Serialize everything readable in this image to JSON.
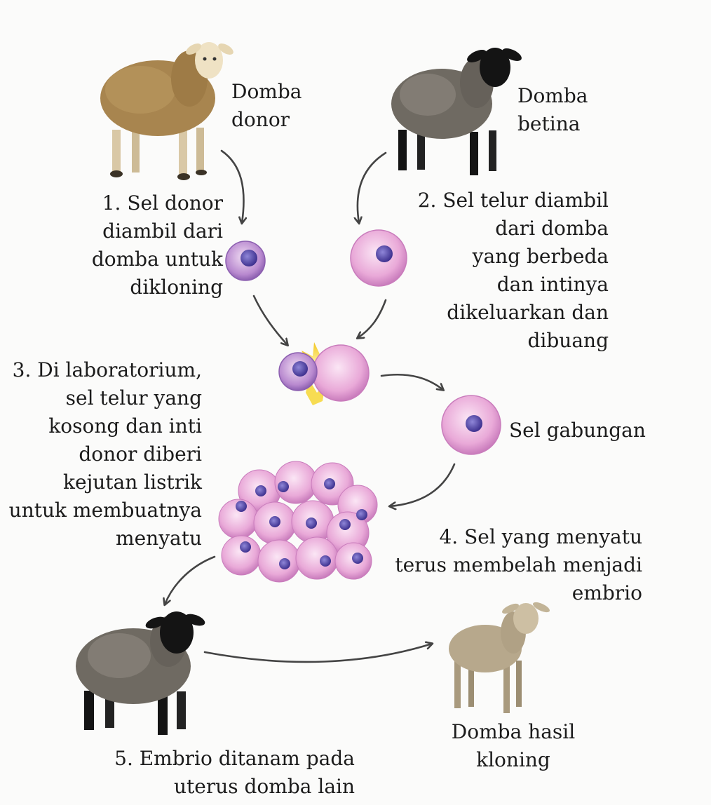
{
  "labels": {
    "donor_sheep": "Domba\ndonor",
    "female_sheep": "Domba\nbetina",
    "step1": "1. Sel donor\ndiambil dari\ndomba untuk\ndikloning",
    "step2": "2. Sel telur diambil\ndari domba\nyang berbeda\ndan intinya\ndikeluarkan dan\ndibuang",
    "step3": "3. Di laboratorium,\nsel telur yang\nkosong dan inti\ndonor diberi\nkejutan listrik\nuntuk membuatnya\nmenyatu",
    "combined_cell": "Sel gabungan",
    "step4": "4. Sel yang menyatu\nterus membelah menjadi\nembrio",
    "cloned_sheep": "Domba hasil\nkloning",
    "step5": "5. Embrio ditanam pada\nuterus domba lain"
  },
  "colors": {
    "donor_wool": "#a8854f",
    "donor_face": "#efe2c4",
    "female_wool": "#6f6a62",
    "female_face": "#141414",
    "clone_wool": "#b7a88c",
    "cell_pink": "#e8a6d6",
    "nucleus": "#5a4aa8",
    "spark": "#f6d634",
    "arrow": "#444444"
  }
}
